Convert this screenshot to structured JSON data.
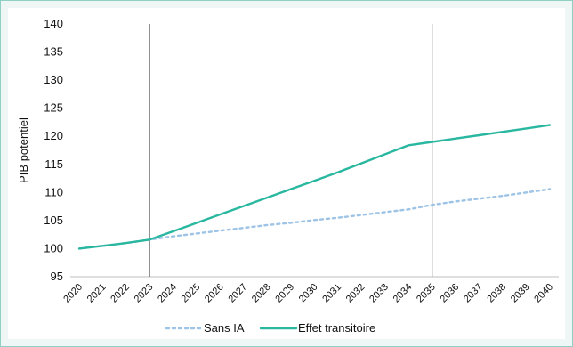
{
  "chart_data": {
    "type": "line",
    "title": "",
    "xlabel": "",
    "ylabel": "PIB potentiel",
    "x": [
      "2020",
      "2021",
      "2022",
      "2023",
      "2024",
      "2025",
      "2026",
      "2027",
      "2028",
      "2029",
      "2030",
      "2031",
      "2032",
      "2033",
      "2034",
      "2035",
      "2036",
      "2037",
      "2038",
      "2039",
      "2040"
    ],
    "ylim": [
      95,
      140
    ],
    "yticks": [
      95,
      100,
      105,
      110,
      115,
      120,
      125,
      130,
      135,
      140
    ],
    "grid": false,
    "legend_position": "bottom",
    "reference_lines_x": [
      "2023",
      "2035"
    ],
    "series": [
      {
        "name": "Sans IA",
        "style": "dotted",
        "color": "#9dc3e6",
        "values": [
          100.0,
          100.5,
          101.0,
          101.6,
          102.2,
          102.7,
          103.2,
          103.7,
          104.2,
          104.6,
          105.1,
          105.5,
          106.0,
          106.5,
          107.0,
          107.8,
          108.4,
          108.9,
          109.4,
          110.0,
          110.6
        ]
      },
      {
        "name": "Effet transitoire",
        "style": "solid",
        "color": "#2ab7a0",
        "values": [
          100.0,
          100.5,
          101.0,
          101.6,
          103.1,
          104.6,
          106.1,
          107.6,
          109.1,
          110.6,
          112.1,
          113.6,
          115.2,
          116.8,
          118.4,
          119.0,
          119.6,
          120.2,
          120.8,
          121.4,
          122.0
        ]
      }
    ]
  }
}
